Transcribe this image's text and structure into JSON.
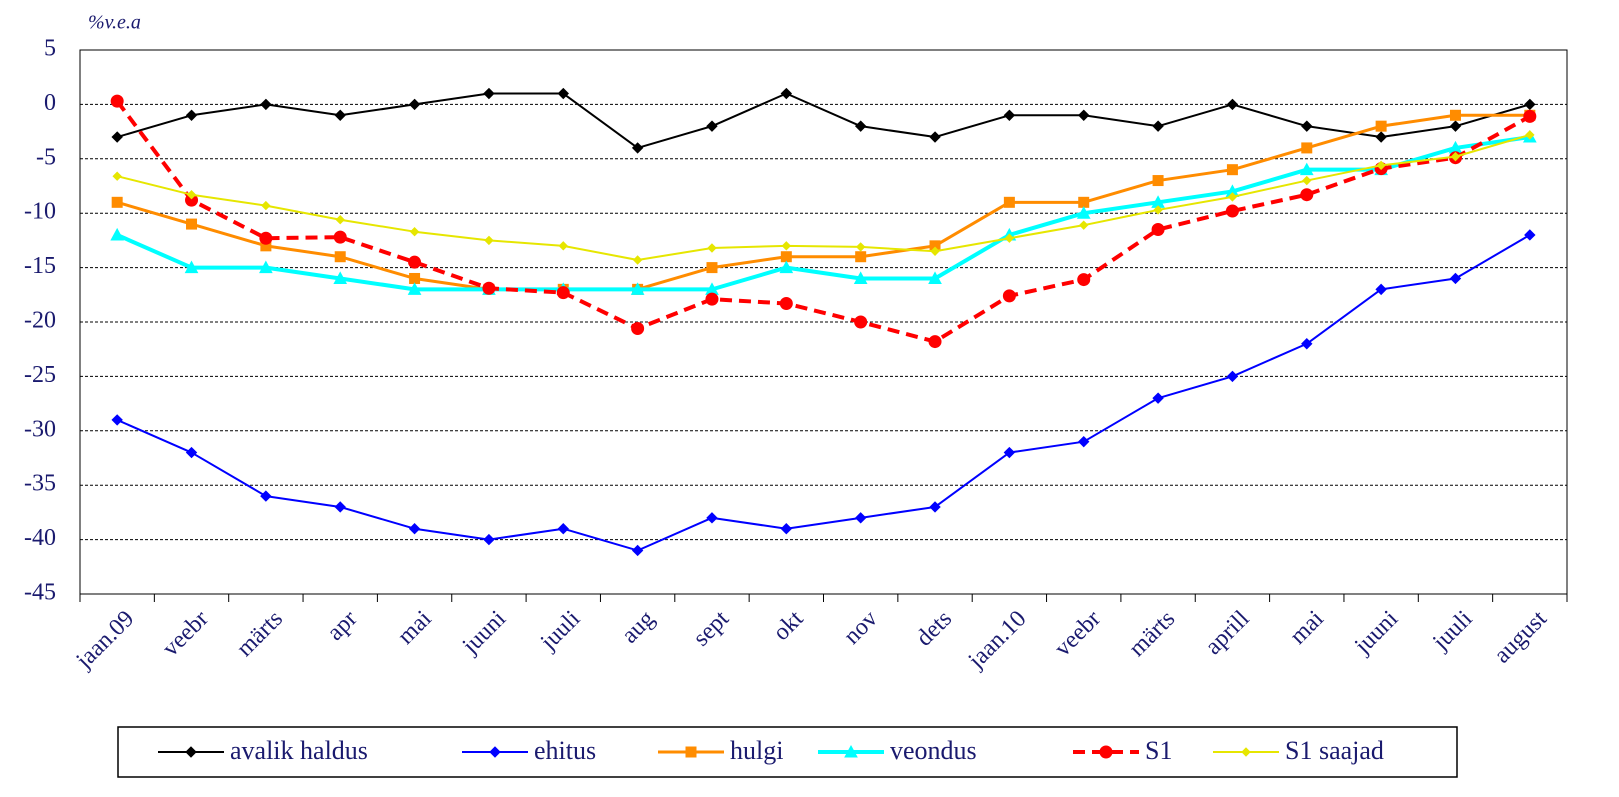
{
  "chart_data": {
    "type": "line",
    "y_label": "%v.e.a",
    "categories": [
      "jaan.09",
      "veebr",
      "märts",
      "apr",
      "mai",
      "juuni",
      "juuli",
      "aug",
      "sept",
      "okt",
      "nov",
      "dets",
      "jaan.10",
      "veebr",
      "märts",
      "aprill",
      "mai",
      "juuni",
      "juuli",
      "august"
    ],
    "ylim": [
      -45,
      5
    ],
    "yticks": [
      5,
      0,
      -5,
      -10,
      -15,
      -20,
      -25,
      -30,
      -35,
      -40,
      -45
    ],
    "grid": true,
    "legend": "bottom",
    "series": [
      {
        "name": "avalik haldus",
        "color": "#000000",
        "marker": "diamond",
        "linestyle": "solid",
        "values": [
          -3,
          -1,
          0,
          -1,
          0,
          1,
          1,
          -4,
          -2,
          1,
          -2,
          -3,
          -1,
          -1,
          -2,
          0,
          -2,
          -3,
          -2,
          0
        ]
      },
      {
        "name": "ehitus",
        "color": "#0000ff",
        "marker": "diamond",
        "linestyle": "solid",
        "values": [
          -29,
          -32,
          -36,
          -37,
          -39,
          -40,
          -39,
          -41,
          -38,
          -39,
          -38,
          -37,
          -32,
          -31,
          -27,
          -25,
          -22,
          -17,
          -16,
          -12
        ]
      },
      {
        "name": "hulgi",
        "color": "#ff8c00",
        "marker": "square",
        "linestyle": "solid",
        "values": [
          -9,
          -11,
          -13,
          -14,
          -16,
          -17,
          -17,
          -17,
          -15,
          -14,
          -14,
          -13,
          -9,
          -9,
          -7,
          -6,
          -4,
          -2,
          -1,
          -1
        ]
      },
      {
        "name": "veondus",
        "color": "#00ffff",
        "marker": "triangle",
        "linestyle": "solid",
        "values": [
          -12,
          -15,
          -15,
          -16,
          -17,
          -17,
          -17,
          -17,
          -17,
          -15,
          -16,
          -16,
          -12,
          -10,
          -9,
          -8,
          -6,
          -6,
          -4,
          -3
        ]
      },
      {
        "name": "S1",
        "color": "#ff0000",
        "marker": "circle",
        "linestyle": "dashed",
        "values": [
          0.3,
          -8.8,
          -12.3,
          -12.2,
          -14.5,
          -16.9,
          -17.3,
          -20.6,
          -17.9,
          -18.3,
          -20,
          -21.8,
          -17.6,
          -16.1,
          -11.5,
          -9.8,
          -8.3,
          -5.9,
          -4.9,
          -1.1
        ]
      },
      {
        "name": "S1 saajad",
        "color": "#e6e600",
        "marker": "smalldiamond",
        "linestyle": "solid",
        "values": [
          -6.6,
          -8.3,
          -9.3,
          -10.6,
          -11.7,
          -12.5,
          -13,
          -14.3,
          -13.2,
          -13,
          -13.1,
          -13.5,
          -12.3,
          -11.1,
          -9.7,
          -8.5,
          -7,
          -5.6,
          -4.8,
          -2.8
        ]
      }
    ]
  }
}
